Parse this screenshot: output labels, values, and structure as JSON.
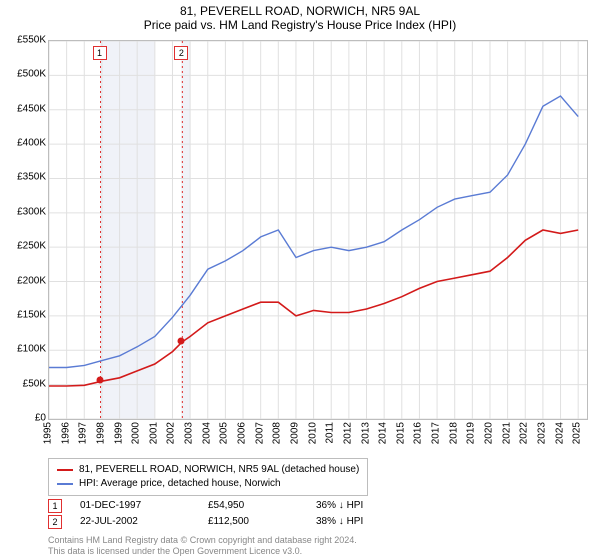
{
  "title": "81, PEVERELL ROAD, NORWICH, NR5 9AL",
  "subtitle": "Price paid vs. HM Land Registry's House Price Index (HPI)",
  "chart": {
    "type": "line",
    "background_color": "#ffffff",
    "plot_border_color": "#bdbdbd",
    "grid_color": "#e0e0e0",
    "band_color": "#f0f2f8",
    "xlim": [
      1995,
      2025.5
    ],
    "ylim": [
      0,
      550000
    ],
    "yticks": [
      0,
      50000,
      100000,
      150000,
      200000,
      250000,
      300000,
      350000,
      400000,
      450000,
      500000,
      550000
    ],
    "ytick_labels": [
      "£0",
      "£50K",
      "£100K",
      "£150K",
      "£200K",
      "£250K",
      "£300K",
      "£350K",
      "£400K",
      "£450K",
      "£500K",
      "£550K"
    ],
    "xticks": [
      1995,
      1996,
      1997,
      1998,
      1999,
      2000,
      2001,
      2002,
      2003,
      2004,
      2005,
      2006,
      2007,
      2008,
      2009,
      2010,
      2011,
      2012,
      2013,
      2014,
      2015,
      2016,
      2017,
      2018,
      2019,
      2020,
      2021,
      2022,
      2023,
      2024,
      2025
    ],
    "bands": [
      {
        "from": 1997.9,
        "to": 1999.0
      },
      {
        "from": 1999.0,
        "to": 2000.0
      },
      {
        "from": 2000.0,
        "to": 2001.0
      },
      {
        "from": 2002.5,
        "to": 2003.0
      }
    ],
    "event_lines": [
      {
        "x": 1997.92,
        "color": "#e03030",
        "dash": "2,3"
      },
      {
        "x": 2002.56,
        "color": "#e03030",
        "dash": "2,3"
      }
    ],
    "series": [
      {
        "name": "81, PEVERELL ROAD, NORWICH, NR5 9AL (detached house)",
        "color": "#d31a1a",
        "line_width": 1.6,
        "x": [
          1995,
          1996,
          1997,
          1998,
          1999,
          2000,
          2001,
          2002,
          2002.56,
          2003,
          2004,
          2005,
          2006,
          2007,
          2008,
          2009,
          2010,
          2011,
          2012,
          2013,
          2014,
          2015,
          2016,
          2017,
          2018,
          2019,
          2020,
          2021,
          2022,
          2023,
          2024,
          2025
        ],
        "y": [
          48000,
          48000,
          49000,
          55000,
          60000,
          70000,
          80000,
          98000,
          112500,
          120000,
          140000,
          150000,
          160000,
          170000,
          170000,
          150000,
          158000,
          155000,
          155000,
          160000,
          168000,
          178000,
          190000,
          200000,
          205000,
          210000,
          215000,
          235000,
          260000,
          275000,
          270000,
          275000
        ]
      },
      {
        "name": "HPI: Average price, detached house, Norwich",
        "color": "#5a7bd4",
        "line_width": 1.4,
        "x": [
          1995,
          1996,
          1997,
          1998,
          1999,
          2000,
          2001,
          2002,
          2003,
          2004,
          2005,
          2006,
          2007,
          2008,
          2009,
          2010,
          2011,
          2012,
          2013,
          2014,
          2015,
          2016,
          2017,
          2018,
          2019,
          2020,
          2021,
          2022,
          2023,
          2024,
          2025
        ],
        "y": [
          75000,
          75000,
          78000,
          85000,
          92000,
          105000,
          120000,
          148000,
          180000,
          218000,
          230000,
          245000,
          265000,
          275000,
          235000,
          245000,
          250000,
          245000,
          250000,
          258000,
          275000,
          290000,
          308000,
          320000,
          325000,
          330000,
          355000,
          400000,
          455000,
          470000,
          440000
        ]
      }
    ],
    "sale_points": [
      {
        "x": 1997.92,
        "y": 54950,
        "color": "#d31a1a"
      },
      {
        "x": 2002.56,
        "y": 112500,
        "color": "#d31a1a"
      }
    ],
    "event_markers": [
      {
        "x": 1997.92,
        "label": "1",
        "border_color": "#e03030"
      },
      {
        "x": 2002.56,
        "label": "2",
        "border_color": "#e03030"
      }
    ]
  },
  "legend": {
    "items": [
      {
        "color": "#d31a1a",
        "label": "81, PEVERELL ROAD, NORWICH, NR5 9AL (detached house)"
      },
      {
        "color": "#5a7bd4",
        "label": "HPI: Average price, detached house, Norwich"
      }
    ]
  },
  "sales": [
    {
      "marker": "1",
      "marker_color": "#e03030",
      "date": "01-DEC-1997",
      "price": "£54,950",
      "hpi": "36% ↓ HPI"
    },
    {
      "marker": "2",
      "marker_color": "#e03030",
      "date": "22-JUL-2002",
      "price": "£112,500",
      "hpi": "38% ↓ HPI"
    }
  ],
  "footer_line1": "Contains HM Land Registry data © Crown copyright and database right 2024.",
  "footer_line2": "This data is licensed under the Open Government Licence v3.0.",
  "label_fontsize": 10,
  "title_fontsize": 12
}
